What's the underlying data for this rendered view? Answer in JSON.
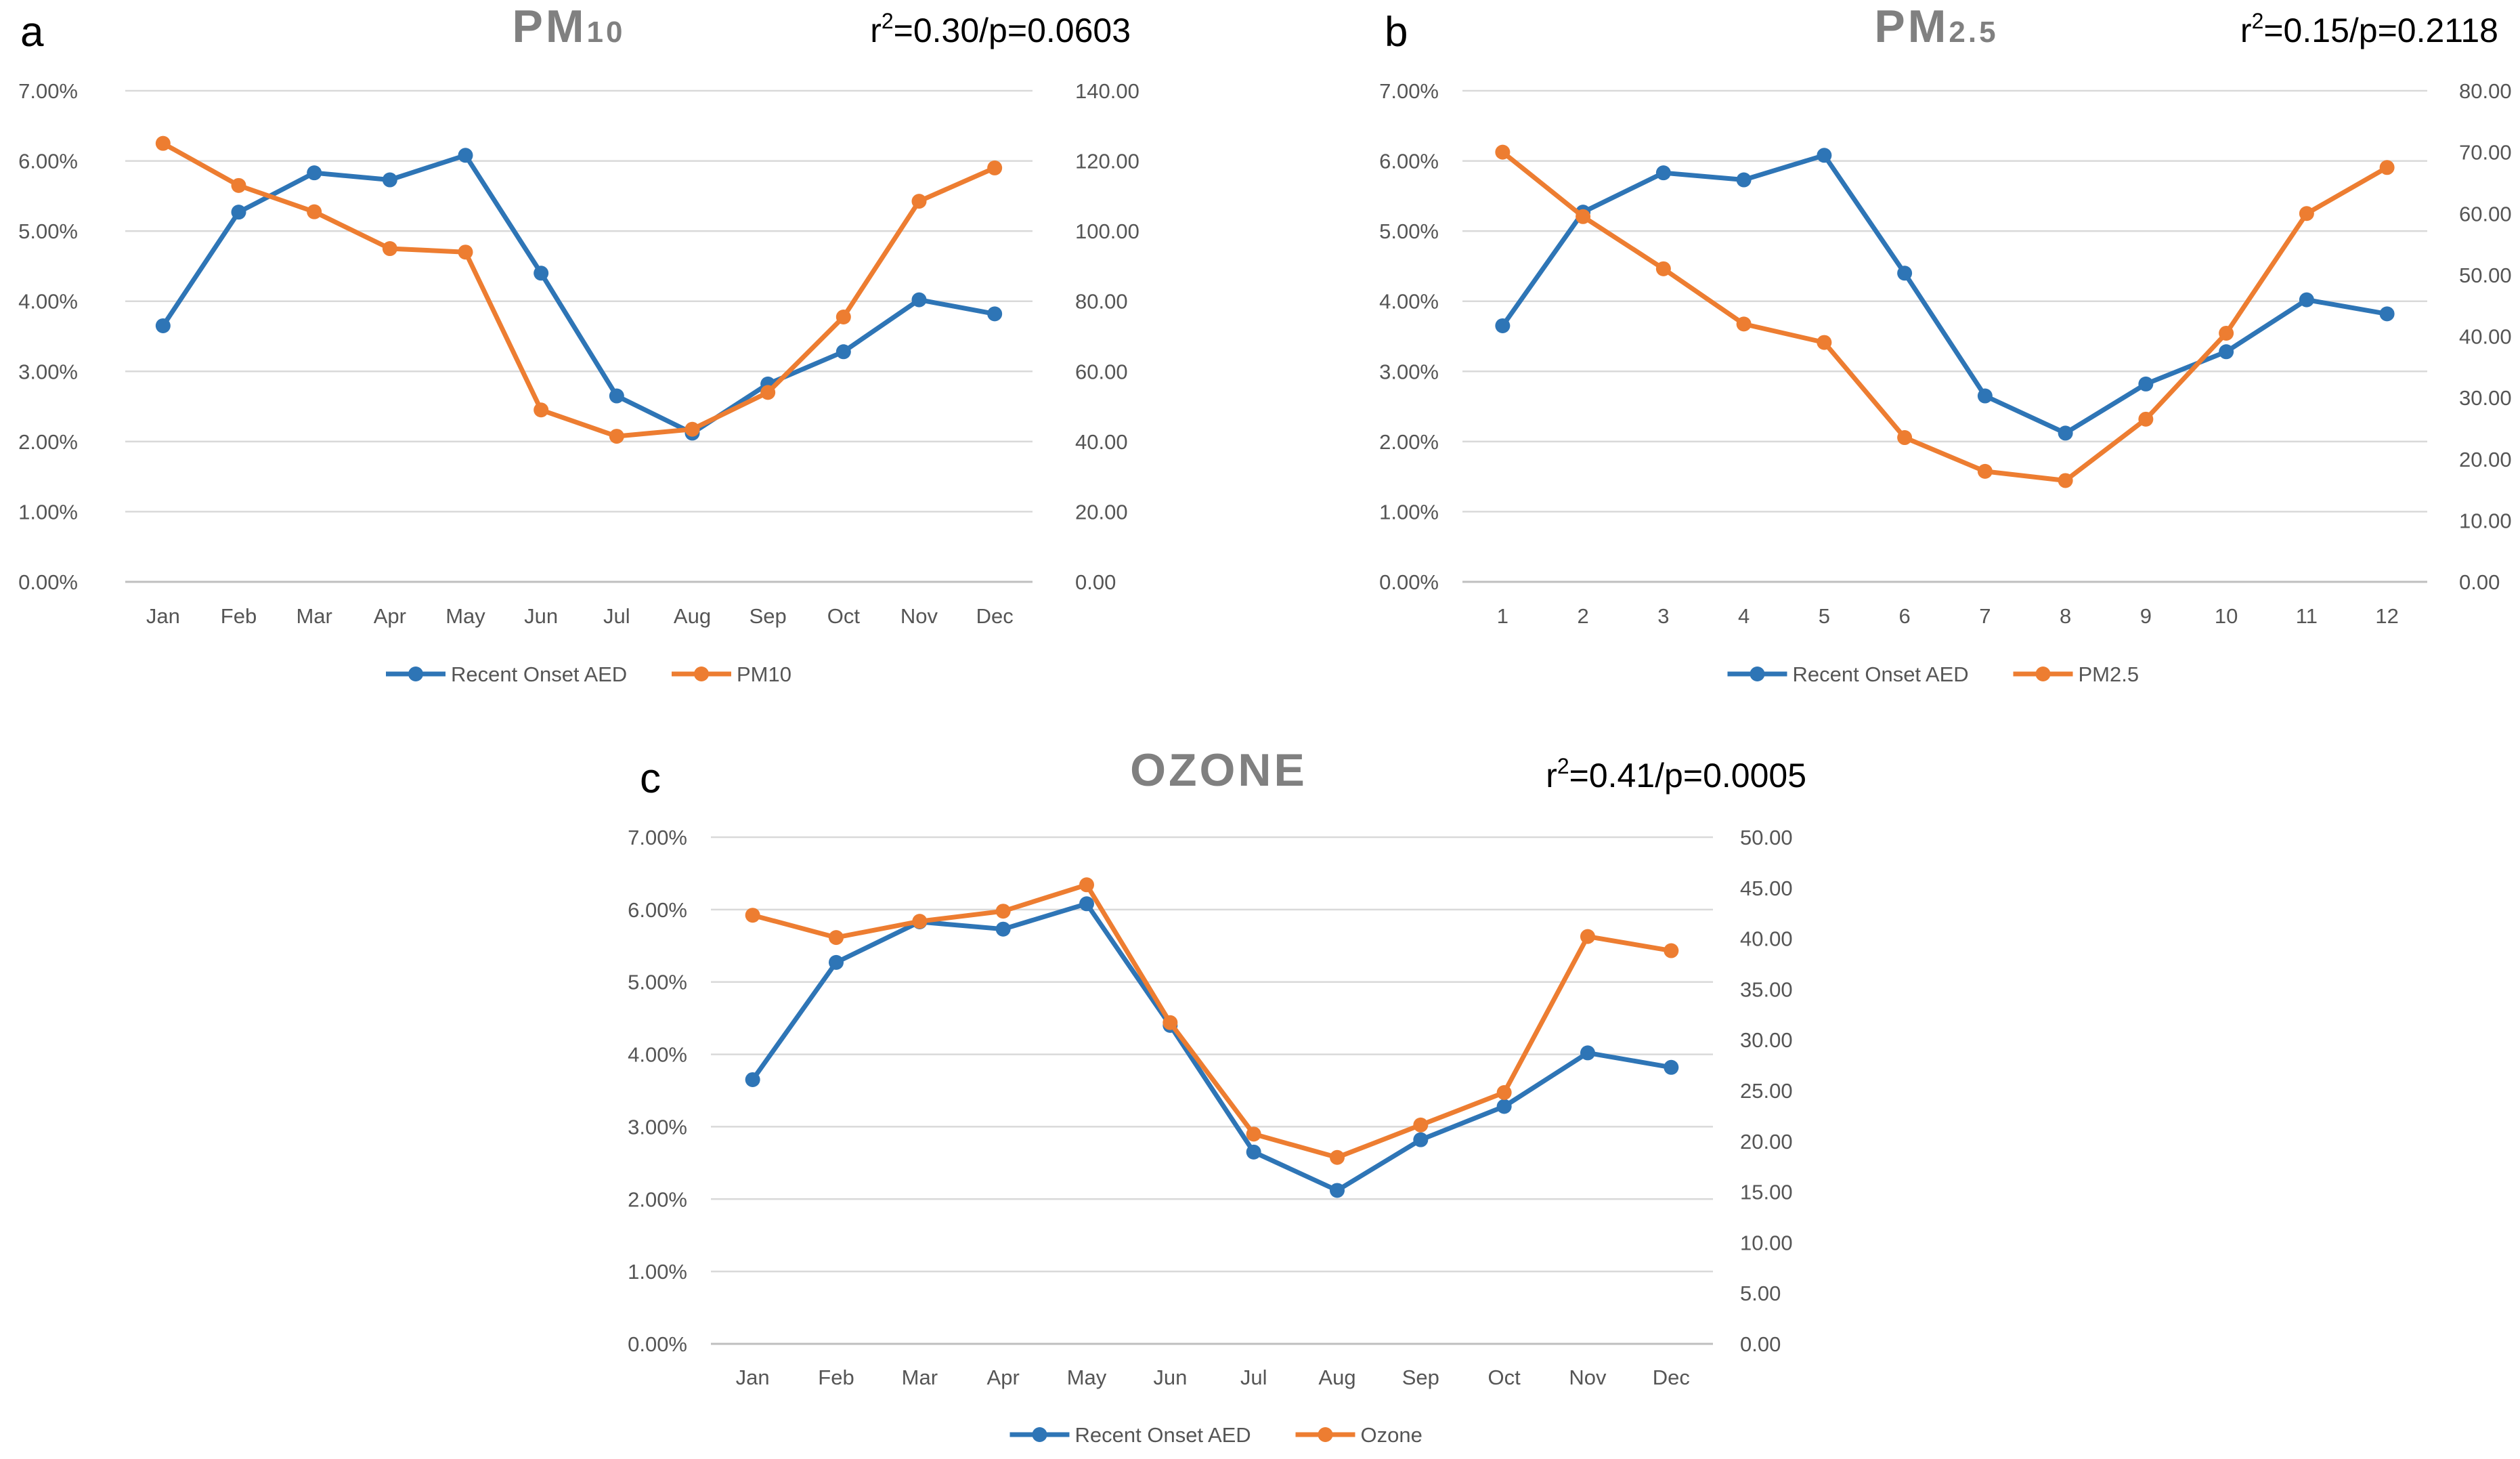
{
  "colors": {
    "aed": "#2e75b6",
    "pollutant": "#ed7d31"
  },
  "chart_data": [
    {
      "type": "line",
      "panel_letter": "a",
      "title": "PM",
      "title_subscript": "10",
      "stat": {
        "r_label": "r",
        "r_sup": "2",
        "value": "=0.30/p=0.0603"
      },
      "categories": [
        "Jan",
        "Feb",
        "Mar",
        "Apr",
        "May",
        "Jun",
        "Jul",
        "Aug",
        "Sep",
        "Oct",
        "Nov",
        "Dec"
      ],
      "y_left": {
        "ylim": [
          0,
          7
        ],
        "ticks": [
          "0.00%",
          "1.00%",
          "2.00%",
          "3.00%",
          "4.00%",
          "5.00%",
          "6.00%",
          "7.00%"
        ]
      },
      "y_right": {
        "ylim": [
          0,
          140
        ],
        "ticks": [
          "0.00",
          "20.00",
          "40.00",
          "60.00",
          "80.00",
          "100.00",
          "120.00",
          "140.00"
        ]
      },
      "series": [
        {
          "name": "Recent Onset AED",
          "axis": "left",
          "color": "#2e75b6",
          "values": [
            3.65,
            5.27,
            5.83,
            5.73,
            6.08,
            4.4,
            2.65,
            2.12,
            2.82,
            3.28,
            4.02,
            3.82
          ]
        },
        {
          "name": "PM10",
          "axis": "right",
          "color": "#ed7d31",
          "values": [
            125.0,
            113.0,
            105.5,
            95.0,
            94.0,
            49.0,
            41.5,
            43.5,
            54.0,
            75.5,
            108.5,
            118.0
          ]
        }
      ]
    },
    {
      "type": "line",
      "panel_letter": "b",
      "title": "PM",
      "title_subscript": "2.5",
      "stat": {
        "r_label": "r",
        "r_sup": "2",
        "value": "=0.15/p=0.2118"
      },
      "categories": [
        "1",
        "2",
        "3",
        "4",
        "5",
        "6",
        "7",
        "8",
        "9",
        "10",
        "11",
        "12"
      ],
      "y_left": {
        "ylim": [
          0,
          7
        ],
        "ticks": [
          "0.00%",
          "1.00%",
          "2.00%",
          "3.00%",
          "4.00%",
          "5.00%",
          "6.00%",
          "7.00%"
        ]
      },
      "y_right": {
        "ylim": [
          0,
          80
        ],
        "ticks": [
          "0.00",
          "10.00",
          "20.00",
          "30.00",
          "40.00",
          "50.00",
          "60.00",
          "70.00",
          "80.00"
        ]
      },
      "series": [
        {
          "name": "Recent Onset AED",
          "axis": "left",
          "color": "#2e75b6",
          "values": [
            3.65,
            5.27,
            5.83,
            5.73,
            6.08,
            4.4,
            2.65,
            2.12,
            2.82,
            3.28,
            4.02,
            3.82
          ]
        },
        {
          "name": "PM2.5",
          "axis": "right",
          "color": "#ed7d31",
          "values": [
            70.0,
            59.5,
            51.0,
            42.0,
            39.0,
            23.5,
            18.0,
            16.5,
            26.5,
            40.5,
            60.0,
            67.5
          ]
        }
      ]
    },
    {
      "type": "line",
      "panel_letter": "c",
      "title": "OZONE",
      "title_subscript": "",
      "stat": {
        "r_label": "r",
        "r_sup": "2",
        "value": "=0.41/p=0.0005"
      },
      "categories": [
        "Jan",
        "Feb",
        "Mar",
        "Apr",
        "May",
        "Jun",
        "Jul",
        "Aug",
        "Sep",
        "Oct",
        "Nov",
        "Dec"
      ],
      "y_left": {
        "ylim": [
          0,
          7
        ],
        "ticks": [
          "0.00%",
          "1.00%",
          "2.00%",
          "3.00%",
          "4.00%",
          "5.00%",
          "6.00%",
          "7.00%"
        ]
      },
      "y_right": {
        "ylim": [
          0,
          50
        ],
        "ticks": [
          "0.00",
          "5.00",
          "10.00",
          "15.00",
          "20.00",
          "25.00",
          "30.00",
          "35.00",
          "40.00",
          "45.00",
          "50.00"
        ]
      },
      "series": [
        {
          "name": "Recent Onset AED",
          "axis": "left",
          "color": "#2e75b6",
          "values": [
            3.65,
            5.27,
            5.83,
            5.73,
            6.08,
            4.4,
            2.65,
            2.12,
            2.82,
            3.28,
            4.02,
            3.82
          ]
        },
        {
          "name": "Ozone",
          "axis": "right",
          "color": "#ed7d31",
          "values": [
            42.3,
            40.1,
            41.7,
            42.7,
            45.3,
            31.7,
            20.7,
            18.4,
            21.6,
            24.8,
            40.2,
            38.8
          ]
        }
      ]
    }
  ]
}
